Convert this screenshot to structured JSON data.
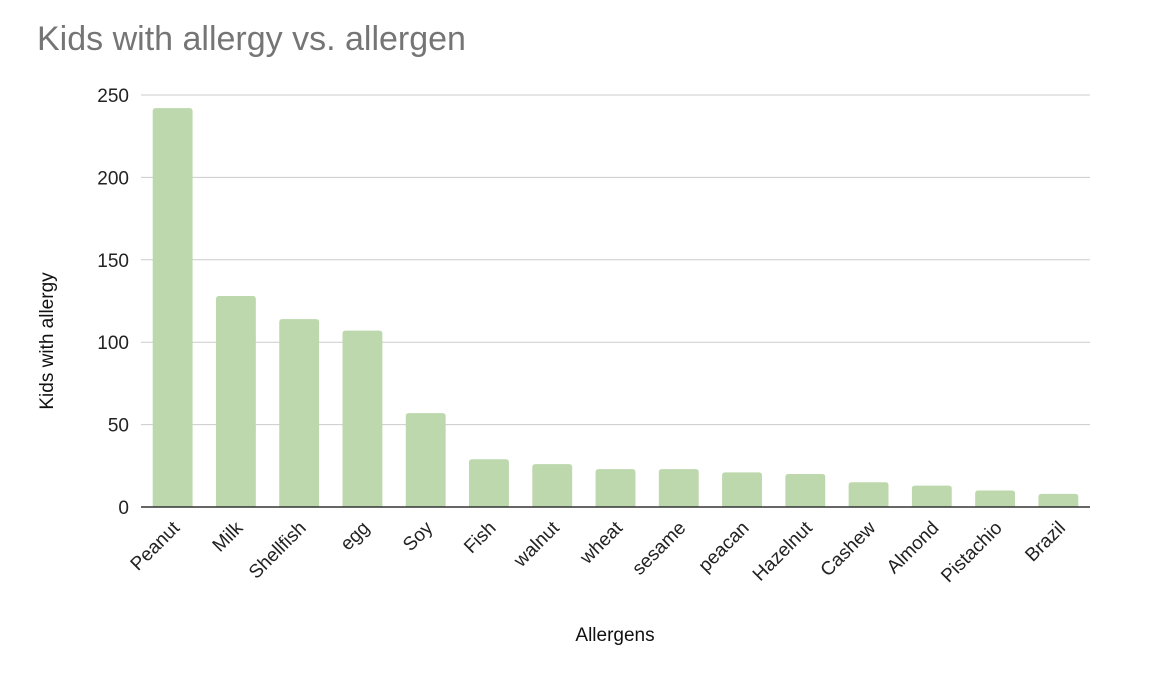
{
  "chart_data": {
    "type": "bar",
    "title": "Kids with allergy vs. allergen",
    "xlabel": "Allergens",
    "ylabel": "Kids with allergy",
    "categories": [
      "Peanut",
      "Milk",
      "Shellfish",
      "egg",
      "Soy",
      "Fish",
      "walnut",
      "wheat",
      "sesame",
      "peacan",
      "Hazelnut",
      "Cashew",
      "Almond",
      "Pistachio",
      "Brazil"
    ],
    "values": [
      242,
      128,
      114,
      107,
      57,
      29,
      26,
      23,
      23,
      21,
      20,
      15,
      13,
      10,
      8
    ],
    "ylim": [
      0,
      250
    ],
    "yticks": [
      0,
      50,
      100,
      150,
      200,
      250
    ],
    "grid": true,
    "legend": "none",
    "bar_color": "#bcd8ac"
  }
}
